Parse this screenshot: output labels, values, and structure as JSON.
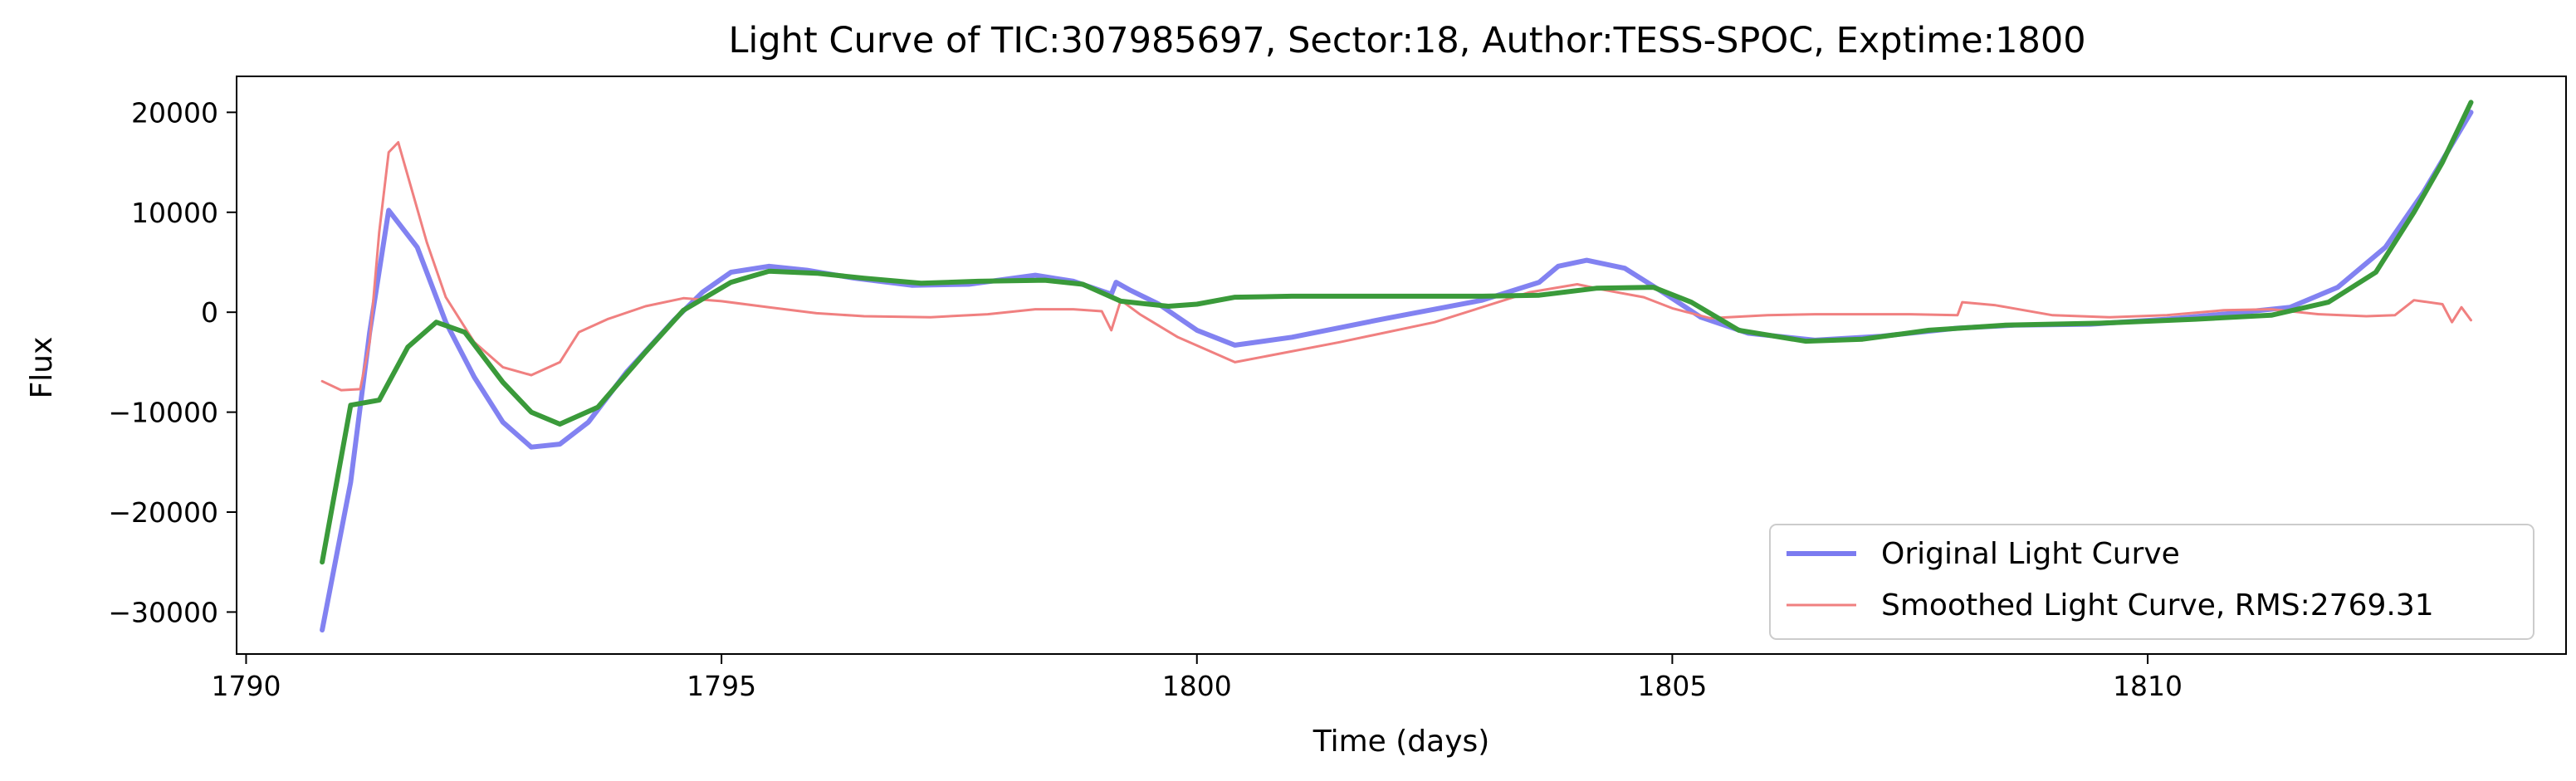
{
  "chart_data": {
    "type": "line",
    "title": "Light Curve of TIC:307985697, Sector:18, Author:TESS-SPOC, Exptime:1800",
    "xlabel": "Time (days)",
    "ylabel": "Flux",
    "xlim": [
      1789.9,
      1814.4
    ],
    "ylim": [
      -34200,
      23600
    ],
    "xticks": [
      1790,
      1795,
      1800,
      1805,
      1810
    ],
    "yticks": [
      -30000,
      -20000,
      -10000,
      0,
      10000,
      20000
    ],
    "grid": false,
    "legend_position": "lower-right",
    "series": [
      {
        "name": "Original Light Curve",
        "color": "#7b7bf0",
        "points": [
          [
            1790.8,
            -31800
          ],
          [
            1791.1,
            -17000
          ],
          [
            1791.3,
            -2000
          ],
          [
            1791.5,
            10200
          ],
          [
            1791.8,
            6500
          ],
          [
            1792.1,
            -1000
          ],
          [
            1792.4,
            -6500
          ],
          [
            1792.7,
            -11000
          ],
          [
            1793.0,
            -13500
          ],
          [
            1793.3,
            -13200
          ],
          [
            1793.6,
            -11000
          ],
          [
            1794.0,
            -6000
          ],
          [
            1794.5,
            -800
          ],
          [
            1794.8,
            2000
          ],
          [
            1795.1,
            4000
          ],
          [
            1795.5,
            4600
          ],
          [
            1795.9,
            4200
          ],
          [
            1796.4,
            3400
          ],
          [
            1797.0,
            2700
          ],
          [
            1797.6,
            2800
          ],
          [
            1798.3,
            3700
          ],
          [
            1798.7,
            3100
          ],
          [
            1799.1,
            1800
          ],
          [
            1799.15,
            3000
          ],
          [
            1799.3,
            2200
          ],
          [
            1799.6,
            800
          ],
          [
            1800.0,
            -1800
          ],
          [
            1800.4,
            -3300
          ],
          [
            1801.0,
            -2500
          ],
          [
            1802.0,
            -600
          ],
          [
            1803.0,
            1200
          ],
          [
            1803.6,
            3000
          ],
          [
            1803.8,
            4600
          ],
          [
            1804.1,
            5200
          ],
          [
            1804.5,
            4400
          ],
          [
            1804.9,
            2000
          ],
          [
            1805.3,
            -500
          ],
          [
            1805.8,
            -2100
          ],
          [
            1806.5,
            -2800
          ],
          [
            1807.2,
            -2400
          ],
          [
            1808.0,
            -1600
          ],
          [
            1808.6,
            -1300
          ],
          [
            1809.4,
            -1200
          ],
          [
            1810.2,
            -700
          ],
          [
            1810.9,
            -100
          ],
          [
            1811.5,
            500
          ],
          [
            1812.0,
            2500
          ],
          [
            1812.5,
            6500
          ],
          [
            1812.9,
            12000
          ],
          [
            1813.4,
            20000
          ]
        ]
      },
      {
        "name": "Smoothed Light Curve, RMS:2769.31",
        "color": "#f08080",
        "points": [
          [
            1790.8,
            -6900
          ],
          [
            1791.0,
            -7800
          ],
          [
            1791.2,
            -7700
          ],
          [
            1791.3,
            -3000
          ],
          [
            1791.4,
            8000
          ],
          [
            1791.5,
            16000
          ],
          [
            1791.6,
            17000
          ],
          [
            1791.75,
            12000
          ],
          [
            1791.9,
            7000
          ],
          [
            1792.1,
            1500
          ],
          [
            1792.4,
            -3000
          ],
          [
            1792.7,
            -5500
          ],
          [
            1793.0,
            -6300
          ],
          [
            1793.3,
            -5000
          ],
          [
            1793.5,
            -2000
          ],
          [
            1793.8,
            -700
          ],
          [
            1794.2,
            600
          ],
          [
            1794.6,
            1400
          ],
          [
            1795.0,
            1100
          ],
          [
            1795.5,
            500
          ],
          [
            1796.0,
            -100
          ],
          [
            1796.5,
            -400
          ],
          [
            1797.2,
            -500
          ],
          [
            1797.8,
            -200
          ],
          [
            1798.3,
            300
          ],
          [
            1798.7,
            300
          ],
          [
            1799.0,
            100
          ],
          [
            1799.1,
            -1800
          ],
          [
            1799.2,
            1200
          ],
          [
            1799.4,
            -200
          ],
          [
            1799.8,
            -2500
          ],
          [
            1800.4,
            -5000
          ],
          [
            1801.5,
            -3000
          ],
          [
            1802.5,
            -1000
          ],
          [
            1803.5,
            2000
          ],
          [
            1804.0,
            2800
          ],
          [
            1804.3,
            2200
          ],
          [
            1804.7,
            1500
          ],
          [
            1805.0,
            400
          ],
          [
            1805.4,
            -600
          ],
          [
            1806.0,
            -300
          ],
          [
            1806.5,
            -200
          ],
          [
            1807.5,
            -200
          ],
          [
            1808.0,
            -300
          ],
          [
            1808.05,
            1000
          ],
          [
            1808.4,
            700
          ],
          [
            1809.0,
            -300
          ],
          [
            1809.6,
            -500
          ],
          [
            1810.2,
            -300
          ],
          [
            1810.8,
            200
          ],
          [
            1811.3,
            300
          ],
          [
            1811.8,
            -200
          ],
          [
            1812.3,
            -400
          ],
          [
            1812.6,
            -300
          ],
          [
            1812.8,
            1200
          ],
          [
            1813.1,
            800
          ],
          [
            1813.2,
            -1000
          ],
          [
            1813.3,
            500
          ],
          [
            1813.4,
            -800
          ]
        ]
      },
      {
        "color": "#3a9a3a",
        "points": [
          [
            1790.8,
            -25000
          ],
          [
            1791.1,
            -9300
          ],
          [
            1791.4,
            -8800
          ],
          [
            1791.7,
            -3500
          ],
          [
            1792.0,
            -1000
          ],
          [
            1792.3,
            -2000
          ],
          [
            1792.7,
            -7000
          ],
          [
            1793.0,
            -10000
          ],
          [
            1793.3,
            -11200
          ],
          [
            1793.7,
            -9500
          ],
          [
            1794.2,
            -4000
          ],
          [
            1794.6,
            200
          ],
          [
            1795.1,
            3000
          ],
          [
            1795.5,
            4100
          ],
          [
            1796.0,
            3900
          ],
          [
            1796.5,
            3400
          ],
          [
            1797.1,
            2900
          ],
          [
            1797.7,
            3100
          ],
          [
            1798.4,
            3200
          ],
          [
            1798.8,
            2800
          ],
          [
            1799.2,
            1100
          ],
          [
            1799.7,
            600
          ],
          [
            1800.0,
            800
          ],
          [
            1800.4,
            1500
          ],
          [
            1801.0,
            1600
          ],
          [
            1802.0,
            1600
          ],
          [
            1803.0,
            1600
          ],
          [
            1803.6,
            1700
          ],
          [
            1804.2,
            2400
          ],
          [
            1804.8,
            2500
          ],
          [
            1805.2,
            1000
          ],
          [
            1805.7,
            -1800
          ],
          [
            1806.4,
            -2900
          ],
          [
            1807.0,
            -2700
          ],
          [
            1807.7,
            -1800
          ],
          [
            1808.5,
            -1300
          ],
          [
            1809.5,
            -1100
          ],
          [
            1810.5,
            -700
          ],
          [
            1811.3,
            -300
          ],
          [
            1811.9,
            1000
          ],
          [
            1812.4,
            4000
          ],
          [
            1812.8,
            10000
          ],
          [
            1813.1,
            15000
          ],
          [
            1813.4,
            21000
          ]
        ]
      }
    ]
  }
}
